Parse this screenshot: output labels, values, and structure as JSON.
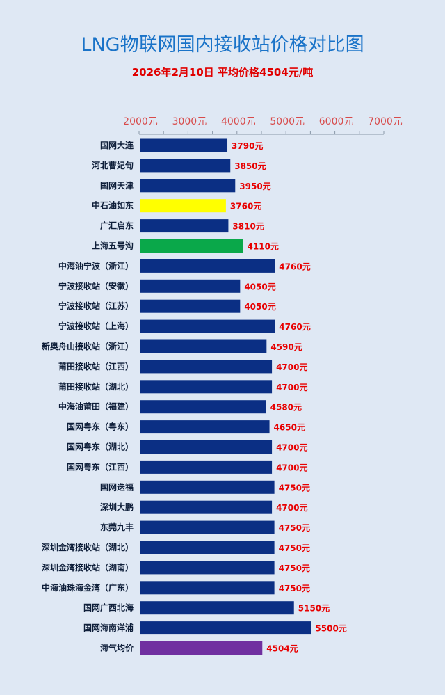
{
  "chart_data": {
    "type": "bar",
    "orientation": "horizontal",
    "title": "LNG物联网国内接收站价格对比图",
    "subtitle": "2026年2月10日 平均价格4504元/吨",
    "xlabel": "",
    "ylabel": "",
    "xlim": [
      2000,
      7000
    ],
    "ticks": [
      "2000元",
      "3000元",
      "4000元",
      "5000元",
      "6000元",
      "7000元"
    ],
    "tick_values": [
      2000,
      3000,
      4000,
      5000,
      6000,
      7000
    ],
    "axis_position": "top",
    "grid": false,
    "legend": "none",
    "default_color": "#0b2f84",
    "categories": [
      "国网大连",
      "河北曹妃甸",
      "国网天津",
      "中石油如东",
      "广汇启东",
      "上海五号沟",
      "中海油宁波（浙江）",
      "宁波接收站（安徽）",
      "宁波接收站（江苏）",
      "宁波接收站（上海）",
      "新奥舟山接收站（浙江）",
      "莆田接收站（江西）",
      "莆田接收站（湖北）",
      "中海油莆田（福建）",
      "国网粤东（粤东）",
      "国网粤东（湖北）",
      "国网粤东（江西）",
      "国网迭福",
      "深圳大鹏",
      "东莞九丰",
      "深圳金湾接收站（湖北）",
      "深圳金湾接收站（湖南）",
      "中海油珠海金湾（广东）",
      "国网广西北海",
      "国网海南洋浦",
      "海气均价"
    ],
    "values": [
      3790,
      3850,
      3950,
      3760,
      3810,
      4110,
      4760,
      4050,
      4050,
      4760,
      4590,
      4700,
      4700,
      4580,
      4650,
      4700,
      4700,
      4750,
      4700,
      4750,
      4750,
      4750,
      4750,
      5150,
      5500,
      4504
    ],
    "value_labels": [
      "3790元",
      "3850元",
      "3950元",
      "3760元",
      "3810元",
      "4110元",
      "4760元",
      "4050元",
      "4050元",
      "4760元",
      "4590元",
      "4700元",
      "4700元",
      "4580元",
      "4650元",
      "4700元",
      "4700元",
      "4750元",
      "4700元",
      "4750元",
      "4750元",
      "4750元",
      "4750元",
      "5150元",
      "5500元",
      "4504元"
    ],
    "highlight_colors": {
      "中石油如东": "#ffff00",
      "上海五号沟": "#0aa84a",
      "海气均价": "#7030a0"
    }
  }
}
